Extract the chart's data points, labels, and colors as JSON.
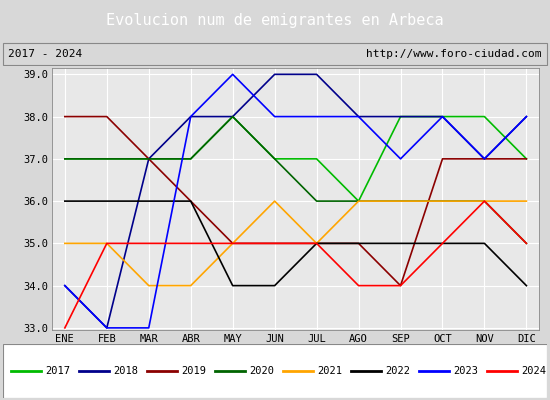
{
  "title": "Evolucion num de emigrantes en Arbeca",
  "subtitle_left": "2017 - 2024",
  "subtitle_right": "http://www.foro-ciudad.com",
  "months": [
    "ENE",
    "FEB",
    "MAR",
    "ABR",
    "MAY",
    "JUN",
    "JUL",
    "AGO",
    "SEP",
    "OCT",
    "NOV",
    "DIC"
  ],
  "series": {
    "2017": {
      "color": "#00bb00",
      "data": [
        37,
        37,
        37,
        37,
        38,
        37,
        37,
        36,
        38,
        38,
        38,
        37
      ]
    },
    "2018": {
      "color": "#00008b",
      "data": [
        34,
        33,
        37,
        38,
        38,
        39,
        39,
        38,
        38,
        38,
        37,
        38
      ]
    },
    "2019": {
      "color": "#8b0000",
      "data": [
        38,
        38,
        37,
        36,
        35,
        35,
        35,
        35,
        34,
        37,
        37,
        37
      ]
    },
    "2020": {
      "color": "#006400",
      "data": [
        37,
        37,
        37,
        37,
        38,
        37,
        36,
        36,
        36,
        36,
        36,
        35
      ]
    },
    "2021": {
      "color": "#ffa500",
      "data": [
        35,
        35,
        34,
        34,
        35,
        36,
        35,
        36,
        36,
        36,
        36,
        36
      ]
    },
    "2022": {
      "color": "#000000",
      "data": [
        36,
        36,
        36,
        36,
        34,
        34,
        35,
        35,
        35,
        35,
        35,
        34
      ]
    },
    "2023": {
      "color": "#0000ff",
      "data": [
        34,
        33,
        33,
        38,
        39,
        38,
        38,
        38,
        37,
        38,
        37,
        38
      ]
    },
    "2024": {
      "color": "#ff0000",
      "data": [
        33,
        35,
        35,
        35,
        35,
        35,
        35,
        34,
        34,
        35,
        36,
        35
      ]
    }
  },
  "ylim": [
    33.0,
    39.0
  ],
  "yticks": [
    33.0,
    34.0,
    35.0,
    36.0,
    37.0,
    38.0,
    39.0
  ],
  "title_bg_color": "#4472c4",
  "title_text_color": "#ffffff",
  "plot_bg_color": "#d8d8d8",
  "inner_bg_color": "#e8e8e8",
  "grid_color": "#ffffff",
  "legend_order": [
    "2017",
    "2018",
    "2019",
    "2020",
    "2021",
    "2022",
    "2023",
    "2024"
  ]
}
